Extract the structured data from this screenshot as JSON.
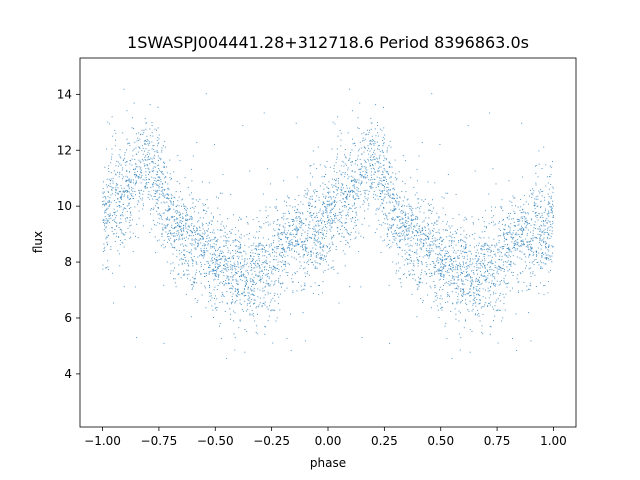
{
  "chart_data": {
    "type": "scatter",
    "title": "1SWASPJ004441.28+312718.6 Period 8396863.0s",
    "xlabel": "phase",
    "ylabel": "flux",
    "xlim": [
      -1.1,
      1.1
    ],
    "ylim": [
      2.1,
      15.3
    ],
    "xticks": [
      -1.0,
      -0.75,
      -0.5,
      -0.25,
      0.0,
      0.25,
      0.5,
      0.75,
      1.0
    ],
    "xtick_labels": [
      "−1.00",
      "−0.75",
      "−0.50",
      "−0.25",
      "0.00",
      "0.25",
      "0.50",
      "0.75",
      "1.00"
    ],
    "yticks": [
      4,
      6,
      8,
      10,
      12,
      14
    ],
    "ytick_labels": [
      "4",
      "6",
      "8",
      "10",
      "12",
      "14"
    ],
    "grid": false,
    "marker_color": "#1f77b4",
    "series": [
      {
        "description_points": "Phase-folded light curve repeated over two cycles (-1 to 0 and 0 to 1); flux trend per phase bin",
        "trend_x": [
          0.0,
          0.04,
          0.08,
          0.12,
          0.16,
          0.2,
          0.24,
          0.28,
          0.32,
          0.36,
          0.4,
          0.44,
          0.48,
          0.52,
          0.56,
          0.6,
          0.64,
          0.68,
          0.72,
          0.76,
          0.8,
          0.84,
          0.88,
          0.92,
          0.96,
          1.0
        ],
        "trend_y": [
          9.5,
          10.2,
          10.0,
          10.6,
          11.2,
          11.6,
          11.0,
          9.8,
          9.2,
          9.0,
          8.8,
          8.6,
          8.3,
          8.0,
          7.8,
          7.6,
          7.4,
          7.5,
          7.8,
          8.2,
          8.6,
          8.8,
          8.9,
          9.2,
          8.8,
          9.5
        ],
        "trend_spread": [
          0.9,
          1.0,
          1.0,
          1.0,
          0.9,
          0.8,
          1.0,
          1.0,
          0.8,
          0.8,
          0.9,
          0.9,
          0.9,
          0.9,
          0.9,
          0.8,
          0.8,
          0.9,
          0.9,
          0.9,
          0.9,
          0.9,
          0.9,
          0.9,
          1.0,
          0.9
        ]
      }
    ]
  }
}
